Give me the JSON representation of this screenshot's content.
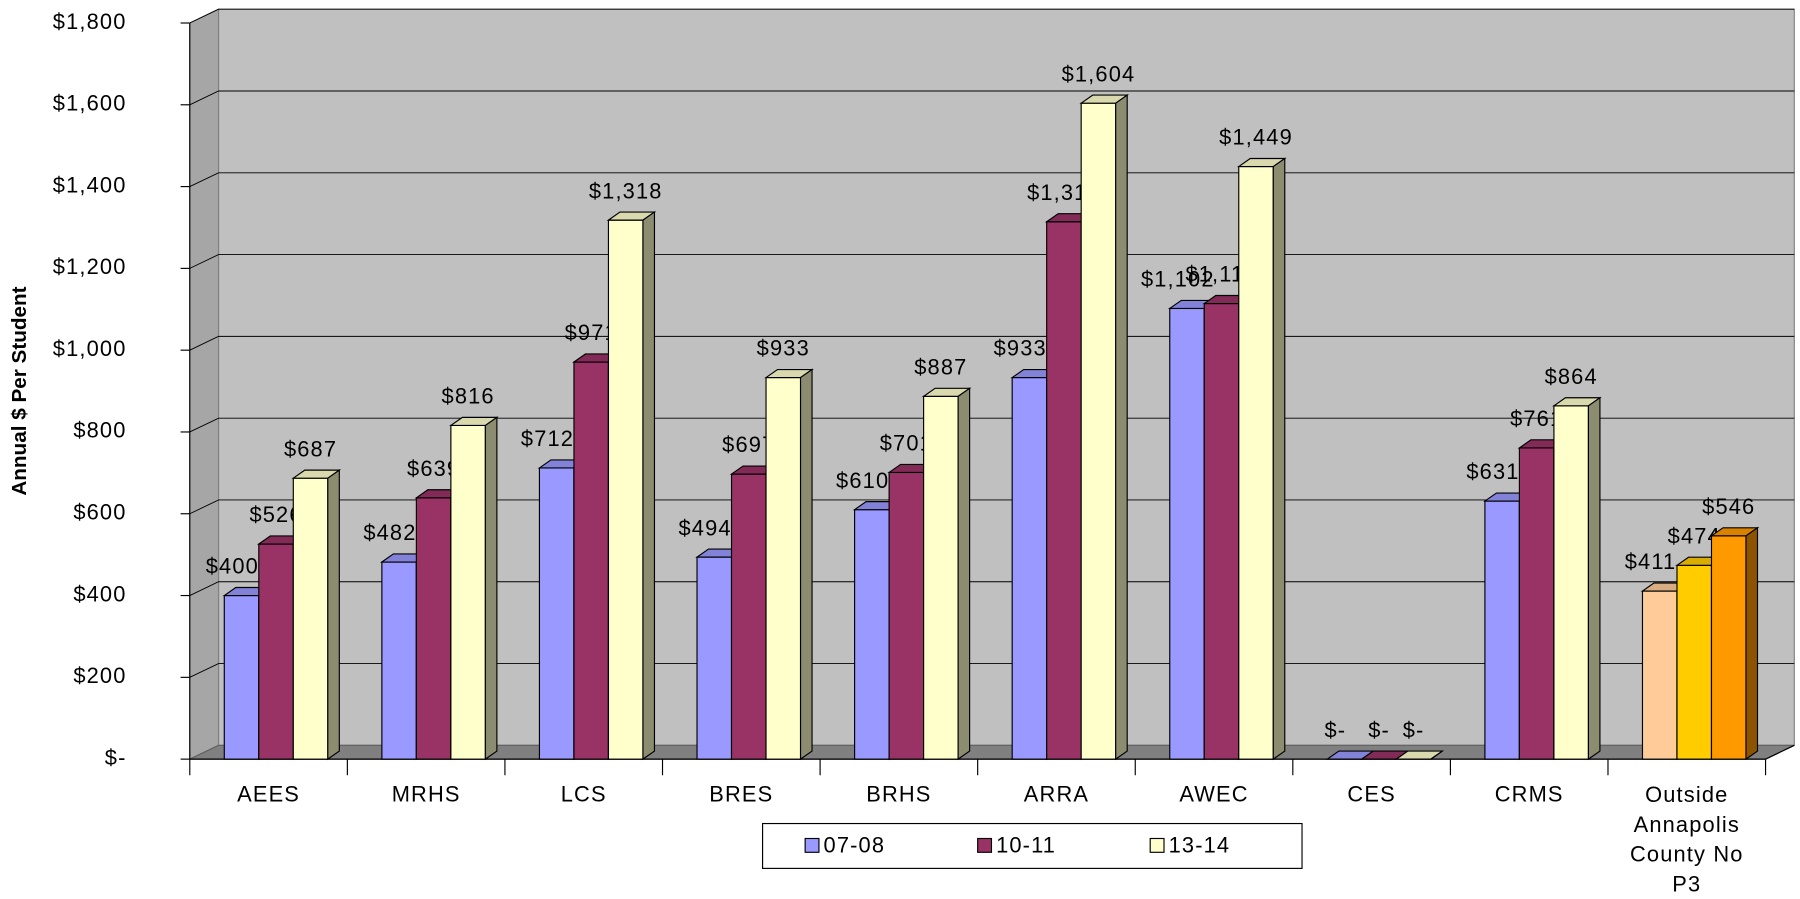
{
  "chart_data": {
    "type": "bar3d",
    "y_label": "Annual $ Per Student",
    "categories": [
      "AEES",
      "MRHS",
      "LCS",
      "BRES",
      "BRHS",
      "ARRA",
      "AWEC",
      "CES",
      "CRMS",
      "Outside Annapolis County No P3"
    ],
    "series": [
      {
        "name": "07-08",
        "color": "#9999FF",
        "colors": [
          "#9999FF",
          "#9999FF",
          "#9999FF",
          "#9999FF",
          "#9999FF",
          "#9999FF",
          "#9999FF",
          "#9999FF",
          "#9999FF",
          "#FFCC99"
        ],
        "values": [
          400,
          482,
          712,
          494,
          610,
          933,
          1102,
          0,
          631,
          411
        ],
        "value_labels": [
          "$400",
          "$482",
          "$712",
          "$494",
          "$610",
          "$933",
          "$1,102",
          "$-",
          "$631",
          "$411"
        ]
      },
      {
        "name": "10-11",
        "color": "#993366",
        "colors": [
          "#993366",
          "#993366",
          "#993366",
          "#993366",
          "#993366",
          "#993366",
          "#993366",
          "#993366",
          "#993366",
          "#FFCC00"
        ],
        "values": [
          526,
          639,
          971,
          697,
          701,
          1314,
          1114,
          0,
          761,
          474
        ],
        "value_labels": [
          "$526",
          "$639",
          "$971",
          "$697",
          "$701",
          "$1,314",
          "$1,114",
          "$-",
          "$761",
          "$474"
        ]
      },
      {
        "name": "13-14",
        "color": "#FFFFCC",
        "colors": [
          "#FFFFCC",
          "#FFFFCC",
          "#FFFFCC",
          "#FFFFCC",
          "#FFFFCC",
          "#FFFFCC",
          "#FFFFCC",
          "#FFFFCC",
          "#FFFFCC",
          "#FF9900"
        ],
        "values": [
          687,
          816,
          1318,
          933,
          887,
          1604,
          1449,
          0,
          864,
          546
        ],
        "value_labels": [
          "$687",
          "$816",
          "$1,318",
          "$933",
          "$887",
          "$1,604",
          "$1,449",
          "$-",
          "$864",
          "$546"
        ]
      }
    ],
    "ylim": [
      0,
      1800
    ],
    "yticks": [
      {
        "value": 0,
        "label": "$-"
      },
      {
        "value": 200,
        "label": "$200"
      },
      {
        "value": 400,
        "label": "$400"
      },
      {
        "value": 600,
        "label": "$600"
      },
      {
        "value": 800,
        "label": "$800"
      },
      {
        "value": 1000,
        "label": "$1,000"
      },
      {
        "value": 1200,
        "label": "$1,200"
      },
      {
        "value": 1400,
        "label": "$1,400"
      },
      {
        "value": 1600,
        "label": "$1,600"
      },
      {
        "value": 1800,
        "label": "$1,800"
      }
    ],
    "grid": true,
    "legend": "bottom"
  }
}
